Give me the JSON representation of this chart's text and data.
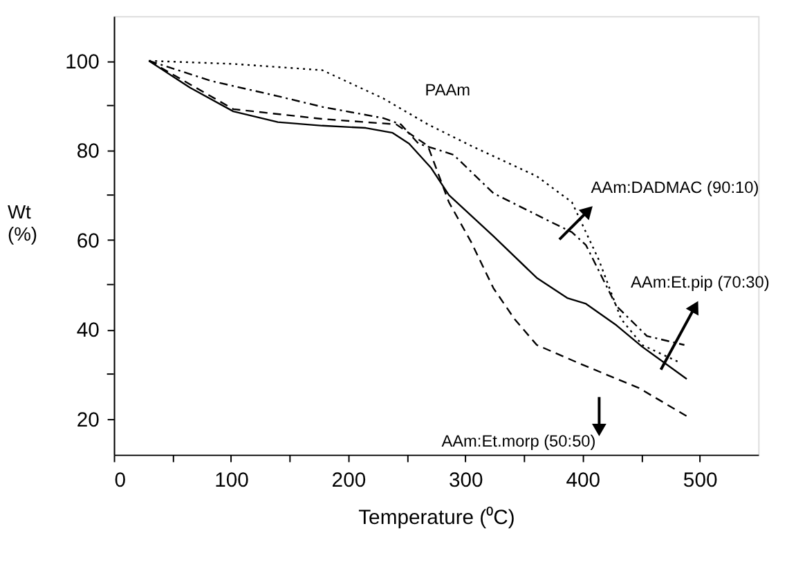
{
  "chart_data": {
    "type": "line",
    "xlabel": "Temperature (⁰C)",
    "ylabel": "Wt (%)",
    "xlim": [
      0,
      550
    ],
    "ylim": [
      12,
      110
    ],
    "xticks": [
      0,
      {
        "value": 50,
        "label": null
      },
      100,
      {
        "value": 150,
        "label": null
      },
      200,
      {
        "value": 250,
        "label": null
      },
      300,
      {
        "value": 350,
        "label": null
      },
      400,
      {
        "value": 450,
        "label": null
      },
      500
    ],
    "yticks": [
      20,
      {
        "value": 30,
        "label": null
      },
      40,
      {
        "value": 50,
        "label": null
      },
      60,
      {
        "value": 70,
        "label": null
      },
      80,
      {
        "value": 90,
        "label": null
      },
      100
    ],
    "grid": false,
    "marker": "none",
    "series": [
      {
        "color": "#000000",
        "line_style": "dotted",
        "x": [
          30,
          102,
          178,
          230,
          268,
          305,
          361,
          391,
          414,
          433,
          451,
          482
        ],
        "values": [
          100,
          99.3,
          97.9,
          91.6,
          85.8,
          81,
          74.2,
          68.4,
          55.5,
          42.3,
          36.5,
          32.7
        ]
      },
      {
        "color": "#000000",
        "line_style": "dashdot",
        "x": [
          30,
          83,
          140,
          178,
          230,
          245,
          260,
          290,
          324,
          373,
          391,
          403,
          429,
          455,
          487
        ],
        "values": [
          100,
          95.5,
          92.1,
          89.7,
          87.2,
          85.8,
          81.5,
          79,
          70.4,
          64,
          61.7,
          58.8,
          45.2,
          38.5,
          36.5
        ]
      },
      {
        "color": "#000000",
        "line_style": "solid",
        "x": [
          30,
          65,
          102,
          140,
          178,
          215,
          238,
          252,
          271,
          286,
          324,
          361,
          387,
          403,
          429,
          451,
          489
        ],
        "values": [
          100,
          94,
          88.7,
          86.3,
          85.5,
          85,
          83.9,
          81.5,
          76,
          70,
          60.8,
          51.5,
          47,
          45.7,
          40.9,
          36.1,
          28.9
        ]
      },
      {
        "color": "#000000",
        "line_style": "dashed",
        "x": [
          30,
          102,
          178,
          241,
          268,
          286,
          305,
          324,
          342,
          361,
          399,
          448,
          489
        ],
        "values": [
          100,
          89.2,
          87,
          85.8,
          81,
          68.4,
          59.5,
          49.2,
          42.3,
          36.5,
          32.2,
          26.9,
          20.6
        ]
      }
    ],
    "annotations": [
      "PAAm",
      "AAm:DADMAC (90:10)",
      "AAm:Et.pip (70:30)",
      "AAm:Et.morp (50:50)"
    ]
  }
}
